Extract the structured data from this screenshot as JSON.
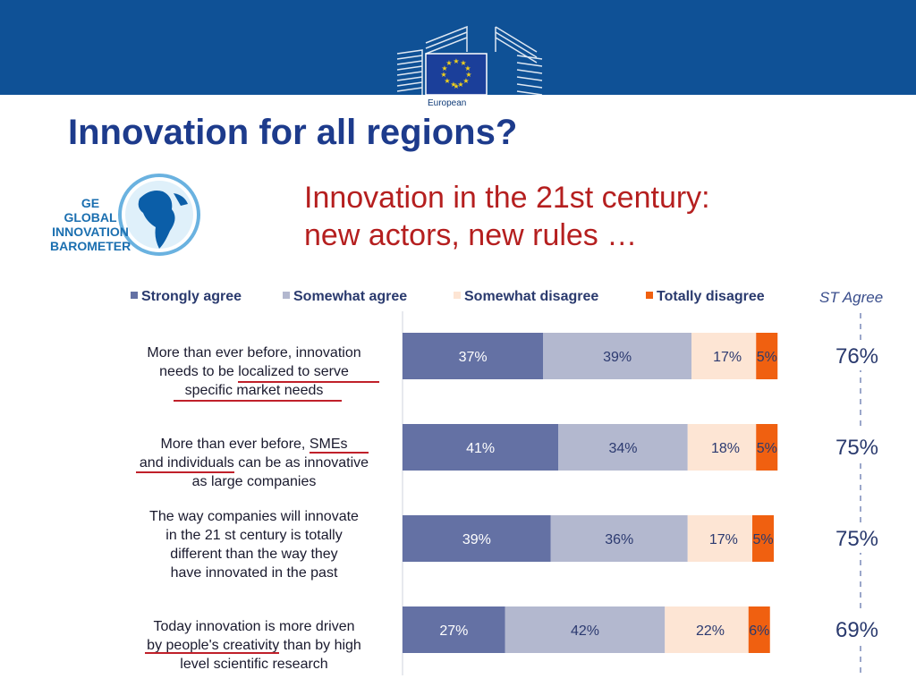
{
  "header": {
    "title": "Innovation for all regions?",
    "subtitle_line1": "Innovation in the 21st century:",
    "subtitle_line2": "new actors, new rules …",
    "eu_label": "European"
  },
  "ge_logo": {
    "line1": "GE",
    "line2": "GLOBAL",
    "line3": "INNOVATION",
    "line4": "BAROMETER"
  },
  "colors": {
    "header_bar": "#0f5196",
    "title": "#1d3b8c",
    "subtitle": "#b51f1f",
    "strongly_agree": "#6471a4",
    "somewhat_agree": "#b3b8cf",
    "somewhat_disagree": "#fde5d4",
    "totally_disagree": "#f06010"
  },
  "chart_data": {
    "type": "bar",
    "orientation": "horizontal",
    "stacked": true,
    "legend_position": "top",
    "categories": [
      "More than ever before, innovation needs to be localized to serve specific market needs",
      "More than ever before, SMEs and individuals can be as innovative as large companies",
      "The way companies will innovate in the 21 st century is totally different than the way they have innovated in the past",
      "Today innovation is more driven by people's creativity than by high level scientific research"
    ],
    "category_lines": [
      [
        "More than ever before, innovation",
        "needs to be localized to serve",
        "specific market needs"
      ],
      [
        "More than ever before, SMEs",
        "and individuals can be as innovative",
        "as large companies"
      ],
      [
        "The way companies will innovate",
        "in the 21 st century is totally",
        "different than the way they",
        "have innovated in the past"
      ],
      [
        "Today innovation is more driven",
        "by people's creativity than by high",
        "level scientific research"
      ]
    ],
    "series": [
      {
        "name": "Strongly agree",
        "values": [
          37,
          41,
          39,
          27
        ],
        "labels": [
          "37%",
          "41%",
          "39%",
          "27%"
        ]
      },
      {
        "name": "Somewhat agree",
        "values": [
          39,
          34,
          36,
          42
        ],
        "labels": [
          "39%",
          "34%",
          "36%",
          "42%"
        ]
      },
      {
        "name": "Somewhat disagree",
        "values": [
          17,
          18,
          17,
          22
        ],
        "labels": [
          "17%",
          "18%",
          "17%",
          "22%"
        ]
      },
      {
        "name": "Totally disagree",
        "values": [
          5,
          5,
          5,
          6
        ],
        "labels": [
          "5%",
          "5%",
          "5%",
          "6%"
        ]
      }
    ],
    "st_agree": {
      "title": "ST Agree",
      "values": [
        "76%",
        "75%",
        "75%",
        "69%"
      ]
    }
  }
}
